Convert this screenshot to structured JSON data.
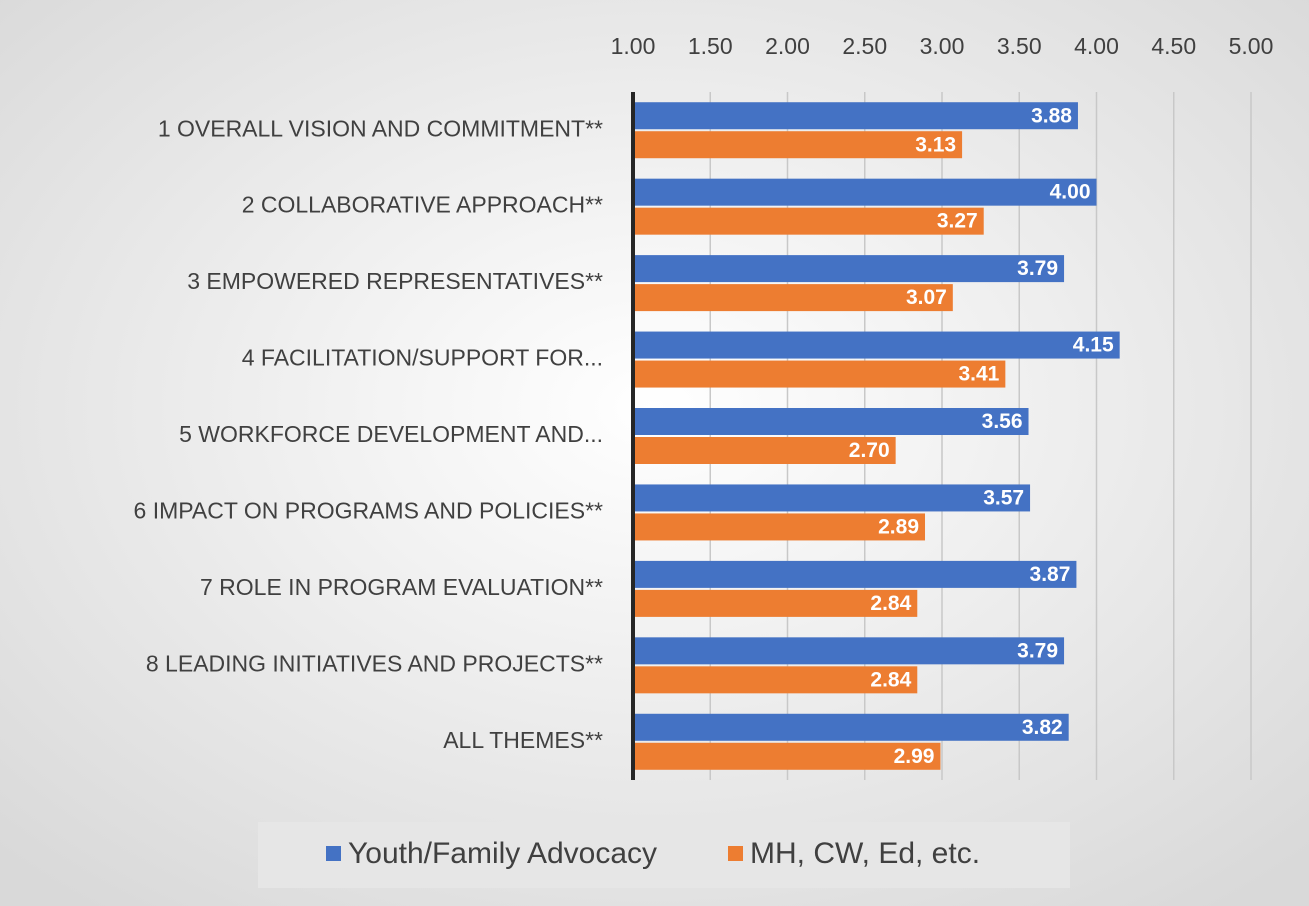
{
  "chart_data": {
    "type": "bar",
    "orientation": "horizontal",
    "categories": [
      "1 OVERALL VISION AND COMMITMENT**",
      "2 COLLABORATIVE APPROACH**",
      "3 EMPOWERED  REPRESENTATIVES**",
      "4 FACILITATION/SUPPORT FOR...",
      "5 WORKFORCE DEVELOPMENT  AND...",
      "6 IMPACT ON PROGRAMS AND POLICIES**",
      "7 ROLE IN PROGRAM EVALUATION**",
      "8 LEADING INITIATIVES AND PROJECTS**",
      "ALL THEMES**"
    ],
    "series": [
      {
        "name": "Youth/Family Advocacy",
        "color": "#4472c4",
        "values": [
          3.88,
          4,
          3.79,
          4.15,
          3.56,
          3.57,
          3.87,
          3.79,
          3.82
        ],
        "value_labels": [
          "3.88",
          "4.00",
          "3.79",
          "4.15",
          "3.56",
          "3.57",
          "3.87",
          "3.79",
          "3.82"
        ]
      },
      {
        "name": "MH, CW, Ed, etc.",
        "color": "#ed7d31",
        "values": [
          3.13,
          3.27,
          3.07,
          3.41,
          2.7,
          2.89,
          2.84,
          2.84,
          2.99
        ],
        "value_labels": [
          "3.13",
          "3.27",
          "3.07",
          "3.41",
          "2.70",
          "2.89",
          "2.84",
          "2.84",
          "2.99"
        ]
      }
    ],
    "xlim": [
      1,
      5
    ],
    "xticks": [
      {
        "value": 1,
        "label": "1.00"
      },
      {
        "value": 1.5,
        "label": "1.50"
      },
      {
        "value": 2,
        "label": "2.00"
      },
      {
        "value": 2.5,
        "label": "2.50"
      },
      {
        "value": 3,
        "label": "3.00"
      },
      {
        "value": 3.5,
        "label": "3.50"
      },
      {
        "value": 4,
        "label": "4.00"
      },
      {
        "value": 4.5,
        "label": "4.50"
      },
      {
        "value": 5,
        "label": "5.00"
      }
    ],
    "grid": true,
    "legend": "bottom"
  }
}
